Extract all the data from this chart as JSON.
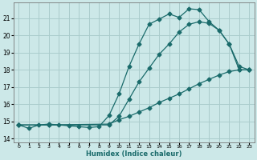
{
  "xlabel": "Humidex (Indice chaleur)",
  "bg_color": "#cce8e8",
  "grid_color": "#aacccc",
  "line_color": "#1a6b6b",
  "xlim": [
    -0.5,
    23.5
  ],
  "ylim": [
    13.8,
    21.9
  ],
  "yticks": [
    14,
    15,
    16,
    17,
    18,
    19,
    20,
    21
  ],
  "xticks": [
    0,
    1,
    2,
    3,
    4,
    5,
    6,
    7,
    8,
    9,
    10,
    11,
    12,
    13,
    14,
    15,
    16,
    17,
    18,
    19,
    20,
    21,
    22,
    23
  ],
  "line1_x": [
    0,
    1,
    2,
    3,
    4,
    5,
    6,
    7,
    8,
    9,
    10,
    11,
    12,
    13,
    14,
    15,
    16,
    17,
    18,
    19,
    20,
    21,
    22,
    23
  ],
  "line1_y": [
    14.8,
    14.6,
    14.8,
    14.85,
    14.8,
    14.75,
    14.7,
    14.65,
    14.7,
    15.35,
    16.6,
    18.2,
    19.5,
    20.65,
    20.95,
    21.25,
    21.05,
    21.55,
    21.5,
    20.8,
    20.3,
    19.5,
    18.0,
    18.0
  ],
  "line2_x": [
    0,
    3,
    9,
    10,
    11,
    12,
    13,
    14,
    15,
    16,
    17,
    18,
    19,
    20,
    21,
    22,
    23
  ],
  "line2_y": [
    14.8,
    14.8,
    14.8,
    15.3,
    16.3,
    17.3,
    18.1,
    18.9,
    19.5,
    20.2,
    20.65,
    20.8,
    20.7,
    20.3,
    19.5,
    18.2,
    18.0
  ],
  "line3_x": [
    0,
    3,
    9,
    10,
    11,
    12,
    13,
    14,
    15,
    16,
    17,
    18,
    19,
    20,
    21,
    22,
    23
  ],
  "line3_y": [
    14.8,
    14.8,
    14.85,
    15.1,
    15.3,
    15.55,
    15.8,
    16.1,
    16.35,
    16.6,
    16.9,
    17.2,
    17.45,
    17.7,
    17.9,
    18.0,
    18.0
  ]
}
